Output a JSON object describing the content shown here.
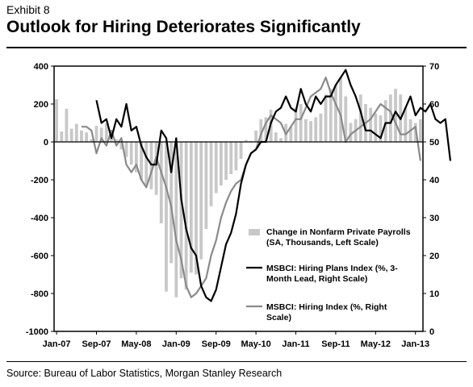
{
  "header": {
    "exhibit": "Exhibit 8",
    "title": "Outlook for Hiring Deteriorates Significantly"
  },
  "footer": {
    "source": "Source: Bureau of Labor Statistics, Morgan Stanley Research"
  },
  "chart_data": {
    "type": "bar+line",
    "x_labels": [
      "Jan-07",
      "Sep-07",
      "May-08",
      "Jan-09",
      "Sep-09",
      "May-10",
      "Jan-11",
      "Sep-11",
      "May-12",
      "Jan-13"
    ],
    "x_start": "2007-01",
    "left_axis": {
      "ylim": [
        -1000,
        400
      ],
      "ticks": [
        "400",
        "200",
        "0",
        "-200",
        "-400",
        "-600",
        "-800",
        "-1000"
      ]
    },
    "right_axis": {
      "ylim": [
        0,
        70
      ],
      "ticks": [
        "70",
        "60",
        "50",
        "40",
        "30",
        "20",
        "10",
        "0"
      ]
    },
    "grid": false,
    "legend_position": "lower-right",
    "colors": {
      "bars": "#c8c8c8",
      "hiring_plans": "#000000",
      "hiring_index": "#8a8a8a"
    },
    "series": [
      {
        "name": "Change in Nonfarm Private Payrolls (SA, Thousands, Left Scale)",
        "type": "bar",
        "axis": "left",
        "values": [
          225,
          55,
          175,
          70,
          95,
          60,
          50,
          15,
          85,
          75,
          100,
          60,
          15,
          -40,
          -80,
          -120,
          -160,
          -200,
          -230,
          -250,
          -280,
          -430,
          -790,
          -640,
          -820,
          -720,
          -780,
          -690,
          -700,
          -620,
          -460,
          -340,
          -270,
          -230,
          -200,
          -170,
          -150,
          -90,
          10,
          5,
          60,
          120,
          130,
          170,
          50,
          20,
          95,
          80,
          180,
          200,
          120,
          110,
          130,
          150,
          250,
          280,
          300,
          340,
          240,
          100,
          120,
          250,
          200,
          180,
          150,
          140,
          220,
          250,
          280,
          250,
          180,
          120,
          100,
          120
        ]
      },
      {
        "name": "MSBCI: Hiring Plans Index (%, 3-Month Lead, Right Scale)",
        "type": "line",
        "axis": "right",
        "start_month_index": 8,
        "values": [
          61,
          55,
          56,
          51,
          56,
          54,
          60,
          53,
          54,
          49,
          46,
          44,
          44,
          53,
          51,
          42,
          51,
          35,
          27,
          22,
          20,
          12,
          9,
          8,
          11,
          17,
          23,
          26,
          31,
          39,
          44,
          47,
          48,
          50,
          50,
          55,
          58,
          59,
          62,
          59,
          58,
          64,
          60,
          58,
          62,
          60,
          62,
          62,
          65,
          67,
          69,
          65,
          62,
          58,
          53,
          53,
          52,
          51,
          55,
          55,
          58,
          56,
          59,
          62,
          57,
          59,
          58,
          60,
          56,
          55,
          56,
          45
        ]
      },
      {
        "name": "MSBCI: Hiring Index (%, Right Scale)",
        "type": "line",
        "axis": "right",
        "start_month_index": 5,
        "values": [
          54,
          54,
          53,
          47,
          51,
          49,
          53,
          49,
          51,
          44,
          42,
          44,
          40,
          38,
          42,
          46,
          42,
          38,
          33,
          24,
          19,
          12,
          9,
          10,
          12,
          14,
          20,
          24,
          30,
          34,
          37,
          39,
          40,
          44,
          47,
          48,
          52,
          55,
          57,
          56,
          55,
          52,
          54,
          56,
          56,
          59,
          62,
          63,
          64,
          67,
          63,
          60,
          57,
          50,
          52,
          53,
          54,
          55,
          56,
          58,
          60,
          59,
          58,
          55,
          52,
          52,
          53,
          54,
          45
        ]
      }
    ]
  }
}
